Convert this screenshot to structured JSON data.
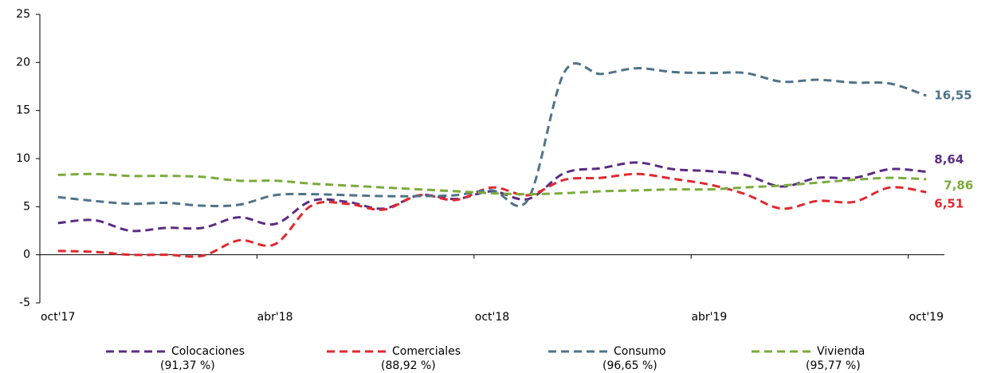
{
  "chart_data": {
    "type": "line",
    "categories": [
      "oct'17",
      null,
      null,
      null,
      null,
      null,
      "abr'18",
      null,
      null,
      null,
      null,
      null,
      "oct'18",
      null,
      null,
      null,
      null,
      null,
      "abr'19",
      null,
      null,
      null,
      null,
      null,
      "oct'19"
    ],
    "ylim": [
      -5,
      25
    ],
    "yticks": [
      -5,
      0,
      5,
      10,
      15,
      20,
      25
    ],
    "grid": false,
    "legend": "bottom",
    "series": [
      {
        "name": "Colocaciones",
        "share_label": "(91,37 %)",
        "color": "#5b2c83",
        "values": [
          3.3,
          3.6,
          2.5,
          2.8,
          2.8,
          3.9,
          3.2,
          5.6,
          5.5,
          4.8,
          6.2,
          5.8,
          6.6,
          5.8,
          8.5,
          9.0,
          9.6,
          8.9,
          8.7,
          8.3,
          7.1,
          8.0,
          8.0,
          8.9,
          8.64
        ],
        "value_labels": [
          null,
          null,
          null,
          null,
          null,
          null,
          null,
          null,
          null,
          null,
          null,
          null,
          null,
          null,
          null,
          null,
          null,
          null,
          null,
          null,
          null,
          null,
          null,
          null,
          "8,64"
        ]
      },
      {
        "name": "Comerciales",
        "share_label": "(88,92 %)",
        "color": "#e0282e",
        "values": [
          0.4,
          0.3,
          0.0,
          0.0,
          -0.1,
          1.5,
          1.1,
          5.1,
          5.3,
          4.7,
          6.2,
          5.7,
          7.0,
          6.2,
          7.8,
          8.0,
          8.4,
          7.9,
          7.3,
          6.3,
          4.8,
          5.6,
          5.5,
          7.0,
          6.51
        ],
        "value_labels": [
          null,
          null,
          null,
          null,
          null,
          null,
          null,
          null,
          null,
          null,
          null,
          null,
          null,
          null,
          null,
          null,
          null,
          null,
          null,
          null,
          null,
          null,
          null,
          null,
          "6,51"
        ]
      },
      {
        "name": "Consumo",
        "share_label": "(96,65 %)",
        "color": "#4f7388",
        "values": [
          6.0,
          5.6,
          5.3,
          5.4,
          5.1,
          5.2,
          6.2,
          6.3,
          6.2,
          6.1,
          6.1,
          6.2,
          6.7,
          5.8,
          19.0,
          18.8,
          19.4,
          19.0,
          18.9,
          18.9,
          18.0,
          18.2,
          17.9,
          17.8,
          16.55
        ],
        "value_labels": [
          null,
          null,
          null,
          null,
          null,
          null,
          null,
          null,
          null,
          null,
          null,
          null,
          null,
          null,
          null,
          null,
          null,
          null,
          null,
          null,
          null,
          null,
          null,
          null,
          "16,55"
        ]
      },
      {
        "name": "Vivienda",
        "share_label": "(95,77 %)",
        "color": "#7aab3a",
        "values": [
          8.3,
          8.4,
          8.2,
          8.2,
          8.1,
          7.7,
          7.7,
          7.4,
          7.2,
          7.0,
          6.8,
          6.6,
          6.4,
          6.3,
          6.4,
          6.6,
          6.7,
          6.8,
          6.8,
          7.0,
          7.2,
          7.5,
          7.8,
          8.0,
          7.86
        ],
        "value_labels": [
          null,
          null,
          null,
          null,
          null,
          null,
          null,
          null,
          null,
          null,
          null,
          null,
          null,
          null,
          null,
          null,
          null,
          null,
          null,
          null,
          null,
          null,
          null,
          null,
          "7,86"
        ]
      }
    ]
  }
}
